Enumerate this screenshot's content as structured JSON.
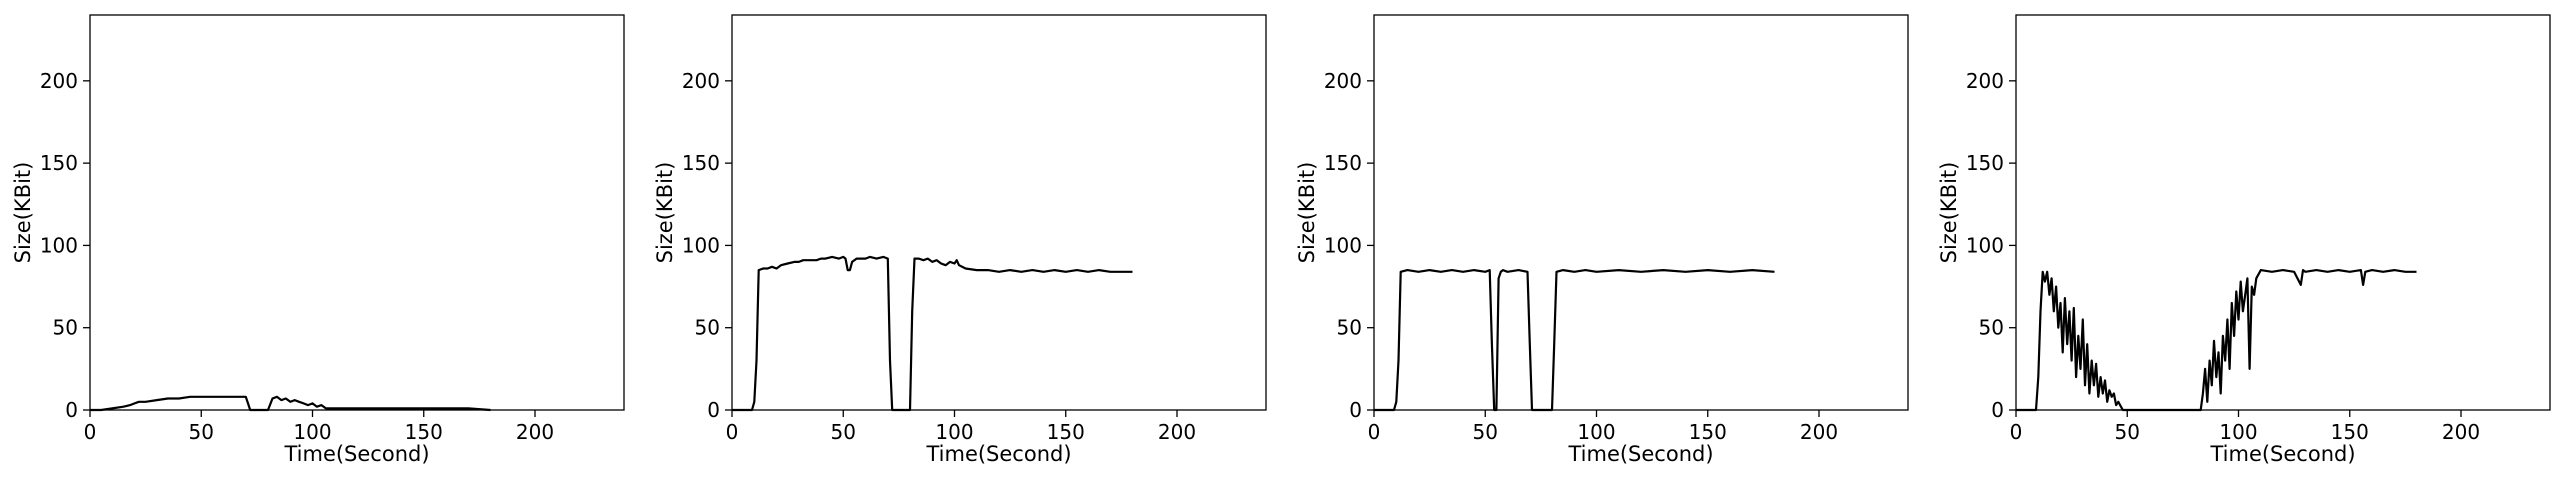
{
  "chart_data": [
    {
      "type": "line",
      "xlabel": "Time(Second)",
      "ylabel": "Size(KBit)",
      "xlim": [
        0,
        240
      ],
      "ylim": [
        0,
        240
      ],
      "xticks": [
        0,
        50,
        100,
        150,
        200
      ],
      "yticks": [
        0,
        50,
        100,
        150,
        200
      ],
      "grid": false,
      "series": [
        {
          "color": "#000000",
          "x": [
            0,
            5,
            10,
            15,
            18,
            20,
            22,
            25,
            30,
            35,
            40,
            45,
            50,
            55,
            60,
            65,
            70,
            71,
            72,
            75,
            78,
            80,
            82,
            84,
            86,
            88,
            90,
            92,
            94,
            96,
            98,
            100,
            102,
            104,
            106,
            110,
            115,
            120,
            130,
            140,
            150,
            160,
            170,
            180
          ],
          "y": [
            0,
            0,
            1,
            2,
            3,
            4,
            5,
            5,
            6,
            7,
            7,
            8,
            8,
            8,
            8,
            8,
            8,
            4,
            0,
            0,
            0,
            0,
            7,
            8,
            6,
            7,
            5,
            6,
            5,
            4,
            3,
            4,
            2,
            3,
            1,
            1,
            1,
            1,
            1,
            1,
            1,
            1,
            1,
            0
          ]
        }
      ]
    },
    {
      "type": "line",
      "xlabel": "Time(Second)",
      "ylabel": "Size(KBit)",
      "xlim": [
        0,
        240
      ],
      "ylim": [
        0,
        240
      ],
      "xticks": [
        0,
        50,
        100,
        150,
        200
      ],
      "yticks": [
        0,
        50,
        100,
        150,
        200
      ],
      "grid": false,
      "series": [
        {
          "color": "#000000",
          "x": [
            0,
            5,
            9,
            10,
            11,
            12,
            14,
            16,
            18,
            20,
            22,
            25,
            28,
            30,
            32,
            35,
            38,
            40,
            42,
            45,
            48,
            50,
            51,
            52,
            53,
            54,
            56,
            58,
            60,
            62,
            65,
            68,
            70,
            71,
            72,
            74,
            76,
            78,
            80,
            81,
            82,
            84,
            86,
            88,
            90,
            92,
            94,
            96,
            98,
            100,
            101,
            102,
            105,
            110,
            115,
            120,
            125,
            130,
            135,
            140,
            145,
            150,
            155,
            160,
            165,
            170,
            175,
            180
          ],
          "y": [
            0,
            0,
            0,
            5,
            30,
            85,
            86,
            86,
            87,
            86,
            88,
            89,
            90,
            90,
            91,
            91,
            91,
            92,
            92,
            93,
            92,
            93,
            92,
            85,
            85,
            90,
            92,
            92,
            92,
            93,
            92,
            93,
            92,
            30,
            0,
            0,
            0,
            0,
            0,
            60,
            92,
            92,
            91,
            92,
            90,
            91,
            89,
            88,
            90,
            89,
            91,
            88,
            86,
            85,
            85,
            84,
            85,
            84,
            85,
            84,
            85,
            84,
            85,
            84,
            85,
            84,
            84,
            84
          ]
        }
      ]
    },
    {
      "type": "line",
      "xlabel": "Time(Second)",
      "ylabel": "Size(KBit)",
      "xlim": [
        0,
        240
      ],
      "ylim": [
        0,
        240
      ],
      "xticks": [
        0,
        50,
        100,
        150,
        200
      ],
      "yticks": [
        0,
        50,
        100,
        150,
        200
      ],
      "grid": false,
      "series": [
        {
          "color": "#000000",
          "x": [
            0,
            5,
            9,
            10,
            11,
            12,
            15,
            20,
            25,
            30,
            35,
            40,
            45,
            50,
            52,
            53,
            54,
            55,
            56,
            57,
            58,
            60,
            65,
            69,
            70,
            71,
            72,
            75,
            80,
            81,
            82,
            85,
            90,
            95,
            100,
            110,
            120,
            130,
            140,
            150,
            160,
            170,
            180
          ],
          "y": [
            0,
            0,
            0,
            5,
            30,
            84,
            85,
            84,
            85,
            84,
            85,
            84,
            85,
            84,
            85,
            40,
            0,
            0,
            80,
            84,
            85,
            84,
            85,
            84,
            40,
            0,
            0,
            0,
            0,
            40,
            84,
            85,
            84,
            85,
            84,
            85,
            84,
            85,
            84,
            85,
            84,
            85,
            84
          ]
        }
      ]
    },
    {
      "type": "line",
      "xlabel": "Time(Second)",
      "ylabel": "Size(KBit)",
      "xlim": [
        0,
        240
      ],
      "ylim": [
        0,
        240
      ],
      "xticks": [
        0,
        50,
        100,
        150,
        200
      ],
      "yticks": [
        0,
        50,
        100,
        150,
        200
      ],
      "grid": false,
      "series": [
        {
          "color": "#000000",
          "x": [
            0,
            5,
            9,
            10,
            11,
            12,
            13,
            14,
            15,
            16,
            17,
            18,
            19,
            20,
            21,
            22,
            23,
            24,
            25,
            26,
            27,
            28,
            29,
            30,
            31,
            32,
            33,
            34,
            35,
            36,
            37,
            38,
            39,
            40,
            41,
            42,
            43,
            44,
            45,
            46,
            48,
            50,
            55,
            60,
            65,
            70,
            75,
            80,
            83,
            84,
            85,
            86,
            87,
            88,
            89,
            90,
            91,
            92,
            93,
            94,
            95,
            96,
            97,
            98,
            99,
            100,
            101,
            102,
            103,
            104,
            105,
            106,
            107,
            108,
            110,
            115,
            120,
            125,
            128,
            129,
            130,
            135,
            140,
            145,
            150,
            155,
            156,
            157,
            160,
            165,
            170,
            175,
            180
          ],
          "y": [
            0,
            0,
            0,
            20,
            60,
            84,
            78,
            84,
            70,
            80,
            60,
            75,
            50,
            65,
            35,
            68,
            40,
            60,
            30,
            62,
            20,
            45,
            25,
            55,
            15,
            40,
            10,
            30,
            15,
            28,
            8,
            20,
            10,
            18,
            5,
            12,
            8,
            10,
            3,
            5,
            0,
            0,
            0,
            0,
            0,
            0,
            0,
            0,
            0,
            10,
            25,
            5,
            30,
            15,
            42,
            20,
            35,
            10,
            45,
            30,
            55,
            25,
            65,
            45,
            72,
            55,
            78,
            60,
            70,
            80,
            25,
            75,
            70,
            80,
            85,
            84,
            85,
            84,
            76,
            85,
            84,
            85,
            84,
            85,
            84,
            85,
            76,
            84,
            85,
            84,
            85,
            84,
            84
          ]
        }
      ]
    }
  ]
}
